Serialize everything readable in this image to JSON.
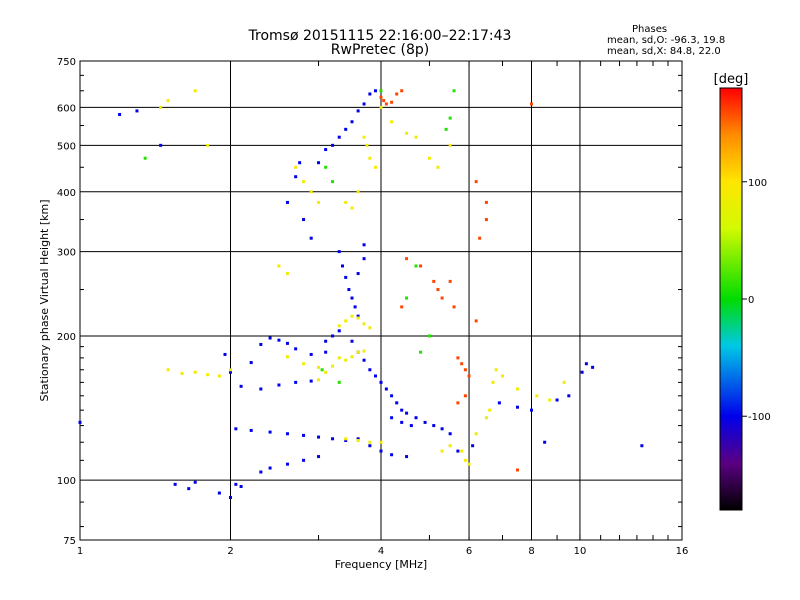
{
  "chart_data": {
    "type": "scatter",
    "title": "Tromsø 20151115 22:16:00–22:17:43",
    "subtitle": "RwPretec (8p)",
    "xlabel": "Frequency [MHz]",
    "ylabel": "Stationary phase Virtual Height [km]",
    "x_scale": "log",
    "y_scale": "log",
    "xlim": [
      1,
      16
    ],
    "ylim": [
      75,
      750
    ],
    "x_ticks": [
      1,
      2,
      4,
      6,
      8,
      10,
      16
    ],
    "y_ticks": [
      75,
      100,
      200,
      300,
      400,
      500,
      600,
      750
    ],
    "grid": true,
    "phase_stats": {
      "heading": "Phases",
      "o_line": "mean, sd,O:  -96.3, 19.8",
      "x_line": "mean, sd,X:  84.8, 22.0"
    },
    "colorbar": {
      "label": "[deg]",
      "range": [
        -180,
        180
      ],
      "ticks": [
        100,
        0,
        -100
      ],
      "colormap": "black-purple-blue-cyan-green-yellow-orange-red"
    },
    "series": [
      {
        "name": "O",
        "phase": -100,
        "points": [
          [
            1.2,
            580
          ],
          [
            1.3,
            590
          ],
          [
            1.45,
            500
          ],
          [
            1.55,
            98
          ],
          [
            1.65,
            96
          ],
          [
            1.7,
            99
          ],
          [
            1.9,
            94
          ],
          [
            2.0,
            92
          ],
          [
            2.05,
            98
          ],
          [
            2.1,
            97
          ],
          [
            1.95,
            183
          ],
          [
            2.0,
            168
          ],
          [
            2.2,
            176
          ],
          [
            2.3,
            192
          ],
          [
            2.4,
            198
          ],
          [
            2.5,
            196
          ],
          [
            2.6,
            193
          ],
          [
            2.7,
            188
          ],
          [
            2.9,
            183
          ],
          [
            3.1,
            185
          ],
          [
            2.05,
            128
          ],
          [
            2.2,
            127
          ],
          [
            2.4,
            126
          ],
          [
            2.6,
            125
          ],
          [
            2.8,
            124
          ],
          [
            3.0,
            123
          ],
          [
            3.2,
            122
          ],
          [
            3.4,
            121
          ],
          [
            2.1,
            157
          ],
          [
            2.3,
            155
          ],
          [
            2.5,
            158
          ],
          [
            2.7,
            160
          ],
          [
            2.9,
            161
          ],
          [
            3.0,
            112
          ],
          [
            2.8,
            110
          ],
          [
            2.6,
            108
          ],
          [
            2.4,
            106
          ],
          [
            2.3,
            104
          ],
          [
            2.6,
            380
          ],
          [
            2.7,
            430
          ],
          [
            2.75,
            460
          ],
          [
            2.8,
            350
          ],
          [
            2.9,
            320
          ],
          [
            3.0,
            460
          ],
          [
            3.1,
            490
          ],
          [
            3.2,
            500
          ],
          [
            3.3,
            520
          ],
          [
            3.4,
            540
          ],
          [
            3.5,
            560
          ],
          [
            3.6,
            590
          ],
          [
            3.7,
            610
          ],
          [
            3.8,
            640
          ],
          [
            3.9,
            650
          ],
          [
            3.3,
            300
          ],
          [
            3.35,
            280
          ],
          [
            3.4,
            265
          ],
          [
            3.45,
            250
          ],
          [
            3.5,
            240
          ],
          [
            3.55,
            230
          ],
          [
            3.6,
            220
          ],
          [
            3.6,
            270
          ],
          [
            3.7,
            290
          ],
          [
            3.7,
            310
          ],
          [
            3.3,
            205
          ],
          [
            3.2,
            200
          ],
          [
            3.1,
            195
          ],
          [
            3.5,
            195
          ],
          [
            3.6,
            185
          ],
          [
            3.7,
            178
          ],
          [
            3.8,
            170
          ],
          [
            3.9,
            165
          ],
          [
            4.0,
            160
          ],
          [
            4.1,
            155
          ],
          [
            4.2,
            150
          ],
          [
            4.3,
            145
          ],
          [
            4.4,
            140
          ],
          [
            4.5,
            138
          ],
          [
            4.7,
            135
          ],
          [
            4.9,
            132
          ],
          [
            5.1,
            130
          ],
          [
            5.3,
            128
          ],
          [
            5.5,
            125
          ],
          [
            4.2,
            135
          ],
          [
            4.4,
            132
          ],
          [
            4.6,
            130
          ],
          [
            3.6,
            122
          ],
          [
            3.8,
            118
          ],
          [
            4.0,
            115
          ],
          [
            4.2,
            113
          ],
          [
            4.5,
            112
          ],
          [
            6.9,
            145
          ],
          [
            7.5,
            142
          ],
          [
            8.0,
            140
          ],
          [
            9.0,
            147
          ],
          [
            9.5,
            150
          ],
          [
            10.3,
            175
          ],
          [
            10.6,
            172
          ],
          [
            10.1,
            168
          ],
          [
            13.3,
            118
          ],
          [
            1.0,
            132
          ],
          [
            8.5,
            120
          ],
          [
            6.1,
            118
          ],
          [
            5.7,
            115
          ]
        ]
      },
      {
        "name": "X",
        "phase": 90,
        "points": [
          [
            1.5,
            170
          ],
          [
            1.6,
            167
          ],
          [
            1.7,
            168
          ],
          [
            1.8,
            166
          ],
          [
            1.9,
            165
          ],
          [
            2.0,
            170
          ],
          [
            2.6,
            181
          ],
          [
            2.8,
            175
          ],
          [
            3.0,
            172
          ],
          [
            3.1,
            168
          ],
          [
            3.2,
            173
          ],
          [
            3.0,
            162
          ],
          [
            3.3,
            210
          ],
          [
            3.4,
            215
          ],
          [
            3.5,
            220
          ],
          [
            3.6,
            218
          ],
          [
            3.7,
            212
          ],
          [
            3.8,
            208
          ],
          [
            3.3,
            180
          ],
          [
            3.4,
            178
          ],
          [
            3.5,
            181
          ],
          [
            3.6,
            185
          ],
          [
            3.7,
            186
          ],
          [
            3.4,
            122
          ],
          [
            3.6,
            121
          ],
          [
            3.8,
            120
          ],
          [
            4.0,
            120
          ],
          [
            3.4,
            380
          ],
          [
            3.5,
            370
          ],
          [
            3.6,
            400
          ],
          [
            3.7,
            520
          ],
          [
            3.75,
            500
          ],
          [
            3.8,
            470
          ],
          [
            3.9,
            450
          ],
          [
            4.0,
            600
          ],
          [
            4.2,
            560
          ],
          [
            4.5,
            530
          ],
          [
            4.7,
            520
          ],
          [
            5.0,
            470
          ],
          [
            5.2,
            450
          ],
          [
            5.5,
            500
          ],
          [
            2.7,
            450
          ],
          [
            2.8,
            420
          ],
          [
            2.9,
            400
          ],
          [
            3.0,
            380
          ],
          [
            2.5,
            280
          ],
          [
            2.6,
            270
          ],
          [
            5.9,
            110
          ],
          [
            5.8,
            115
          ],
          [
            6.0,
            108
          ],
          [
            5.3,
            115
          ],
          [
            5.5,
            118
          ],
          [
            6.2,
            125
          ],
          [
            6.5,
            135
          ],
          [
            6.6,
            140
          ],
          [
            6.7,
            160
          ],
          [
            6.8,
            170
          ],
          [
            7.0,
            165
          ],
          [
            7.5,
            155
          ],
          [
            8.2,
            150
          ],
          [
            8.7,
            147
          ],
          [
            9.3,
            160
          ],
          [
            1.45,
            600
          ],
          [
            1.5,
            620
          ],
          [
            1.7,
            650
          ],
          [
            1.8,
            500
          ]
        ]
      },
      {
        "name": "",
        "phase": 160,
        "points": [
          [
            4.0,
            630
          ],
          [
            4.05,
            620
          ],
          [
            4.1,
            610
          ],
          [
            4.2,
            615
          ],
          [
            4.3,
            640
          ],
          [
            4.4,
            650
          ],
          [
            5.1,
            260
          ],
          [
            5.2,
            250
          ],
          [
            5.3,
            240
          ],
          [
            5.6,
            230
          ],
          [
            4.8,
            280
          ],
          [
            5.7,
            180
          ],
          [
            5.8,
            175
          ],
          [
            5.9,
            170
          ],
          [
            6.0,
            165
          ],
          [
            5.9,
            150
          ],
          [
            5.7,
            145
          ],
          [
            6.2,
            420
          ],
          [
            6.5,
            380
          ],
          [
            6.5,
            350
          ],
          [
            6.3,
            320
          ],
          [
            8.0,
            610
          ],
          [
            6.2,
            215
          ],
          [
            5.5,
            260
          ],
          [
            4.5,
            290
          ],
          [
            7.5,
            105
          ],
          [
            4.4,
            230
          ]
        ]
      },
      {
        "name": "",
        "phase": 10,
        "points": [
          [
            4.0,
            650
          ],
          [
            3.1,
            450
          ],
          [
            3.2,
            420
          ],
          [
            3.05,
            170
          ],
          [
            3.3,
            160
          ],
          [
            4.5,
            240
          ],
          [
            1.35,
            470
          ],
          [
            4.7,
            280
          ],
          [
            5.6,
            650
          ],
          [
            5.5,
            570
          ],
          [
            5.4,
            540
          ],
          [
            5.0,
            200
          ],
          [
            4.8,
            185
          ]
        ]
      }
    ]
  }
}
